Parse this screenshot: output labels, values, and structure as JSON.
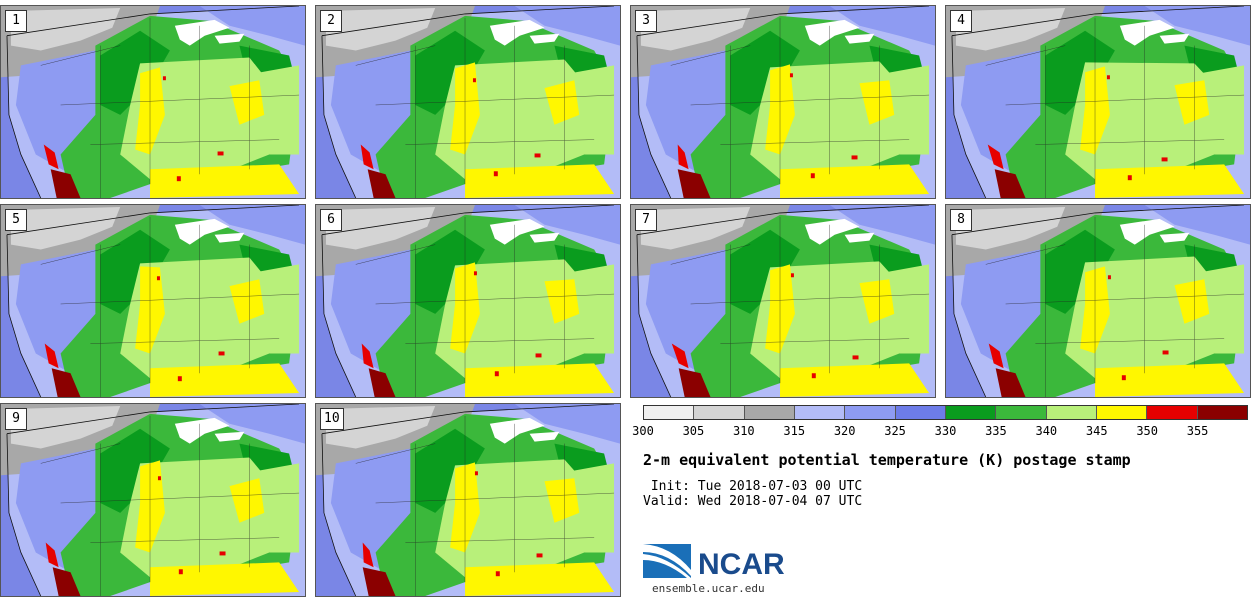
{
  "members": [
    "1",
    "2",
    "3",
    "4",
    "5",
    "6",
    "7",
    "8",
    "9",
    "10"
  ],
  "colorbar": {
    "colors": [
      "#f0f0f0",
      "#d4d4d4",
      "#a8a8a8",
      "#b3bcf7",
      "#8e9bf2",
      "#6d7ce8",
      "#0a9c1e",
      "#3bb83b",
      "#b8f07a",
      "#fff700",
      "#e60000",
      "#8b0000"
    ],
    "ticks": [
      "300",
      "305",
      "310",
      "315",
      "320",
      "325",
      "330",
      "335",
      "340",
      "345",
      "350",
      "355"
    ]
  },
  "title": "2-m equivalent potential temperature (K) postage stamp",
  "init": " Init: Tue 2018-07-03 00 UTC",
  "valid": "Valid: Wed 2018-07-04 07 UTC",
  "logo": {
    "brand": "NCAR",
    "url": "ensemble.ucar.edu"
  },
  "map_colors": {
    "ocean": "#7a86e6",
    "gray_dark": "#a8a8a8",
    "gray_light": "#d4d4d4",
    "blue_light": "#b3bcf7",
    "blue_mid": "#8e9bf2",
    "green_dark": "#0a9c1e",
    "green_mid": "#3bb83b",
    "green_light": "#b8f07a",
    "yellow": "#fff700",
    "red": "#e60000",
    "darkred": "#8b0000",
    "lakes": "#ffffff"
  }
}
